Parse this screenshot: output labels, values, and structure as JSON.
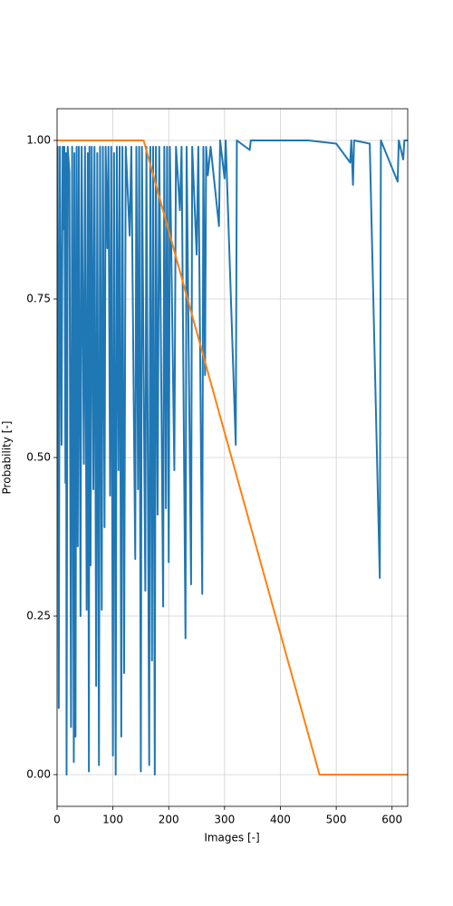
{
  "chart_data": {
    "type": "line",
    "xlabel": "Images [-]",
    "ylabel": "Probability [-]",
    "xlim": [
      0,
      628
    ],
    "ylim": [
      -0.05,
      1.05
    ],
    "xticks": [
      0,
      100,
      200,
      300,
      400,
      500,
      600
    ],
    "yticks": [
      {
        "value": 0,
        "label": "0.00"
      },
      {
        "value": 0.25,
        "label": "0.25"
      },
      {
        "value": 0.5,
        "label": "0.50"
      },
      {
        "value": 0.75,
        "label": "0.75"
      },
      {
        "value": 1,
        "label": "1.00"
      }
    ],
    "grid": true,
    "series": [
      {
        "color": "#1f77b4",
        "x": [
          0,
          1,
          3,
          5,
          8,
          10,
          12,
          13,
          15,
          16,
          17,
          19,
          22,
          25,
          27,
          30,
          31,
          33,
          35,
          37,
          39,
          42,
          44,
          48,
          50,
          53,
          55,
          57,
          58,
          60,
          62,
          65,
          67,
          70,
          72,
          75,
          77,
          80,
          82,
          85,
          87,
          90,
          92,
          95,
          97,
          100,
          102,
          105,
          107,
          110,
          112,
          115,
          117,
          120,
          123,
          130,
          133,
          140,
          142,
          145,
          147,
          150,
          152,
          158,
          160,
          165,
          167,
          170,
          172,
          175,
          177,
          180,
          183,
          190,
          192,
          195,
          197,
          200,
          202,
          210,
          213,
          220,
          223,
          230,
          232,
          240,
          242,
          250,
          253,
          260,
          262,
          265,
          267,
          270,
          275,
          290,
          292,
          300,
          302,
          320,
          322,
          345,
          347,
          400,
          450,
          500,
          525,
          527,
          530,
          532,
          560,
          578,
          580,
          610,
          612,
          620,
          622,
          628
        ],
        "values": [
          0.98,
          0.99,
          0.105,
          0.99,
          0.52,
          0.99,
          0.86,
          0.99,
          0.46,
          0.98,
          0.0,
          0.99,
          0.95,
          0.075,
          0.99,
          0.02,
          0.98,
          0.06,
          0.99,
          0.36,
          0.99,
          0.25,
          0.99,
          0.49,
          0.99,
          0.26,
          0.98,
          0.005,
          0.99,
          0.33,
          0.99,
          0.45,
          0.99,
          0.14,
          0.98,
          0.015,
          0.99,
          0.26,
          0.99,
          0.39,
          0.99,
          0.83,
          0.99,
          0.44,
          0.99,
          0.03,
          0.98,
          0.0,
          0.99,
          0.48,
          0.99,
          0.06,
          0.99,
          0.16,
          0.99,
          0.85,
          0.99,
          0.34,
          0.99,
          0.45,
          0.99,
          0.005,
          0.99,
          0.29,
          0.99,
          0.015,
          0.99,
          0.18,
          0.99,
          0.0,
          0.99,
          0.41,
          0.99,
          0.265,
          0.99,
          0.42,
          0.99,
          0.335,
          0.99,
          0.48,
          0.99,
          0.89,
          0.99,
          0.215,
          0.99,
          0.3,
          0.99,
          0.82,
          0.99,
          0.285,
          0.99,
          0.63,
          0.99,
          0.945,
          0.99,
          0.865,
          1.0,
          0.94,
          1.0,
          0.52,
          1.0,
          0.985,
          1.0,
          1.0,
          1.0,
          0.995,
          0.965,
          1.0,
          0.93,
          1.0,
          0.995,
          0.31,
          1.0,
          0.935,
          1.0,
          0.97,
          1.0,
          1.0
        ]
      },
      {
        "color": "#ff7f0e",
        "x": [
          0,
          155,
          470,
          628
        ],
        "values": [
          1,
          1,
          0,
          0
        ]
      }
    ]
  }
}
